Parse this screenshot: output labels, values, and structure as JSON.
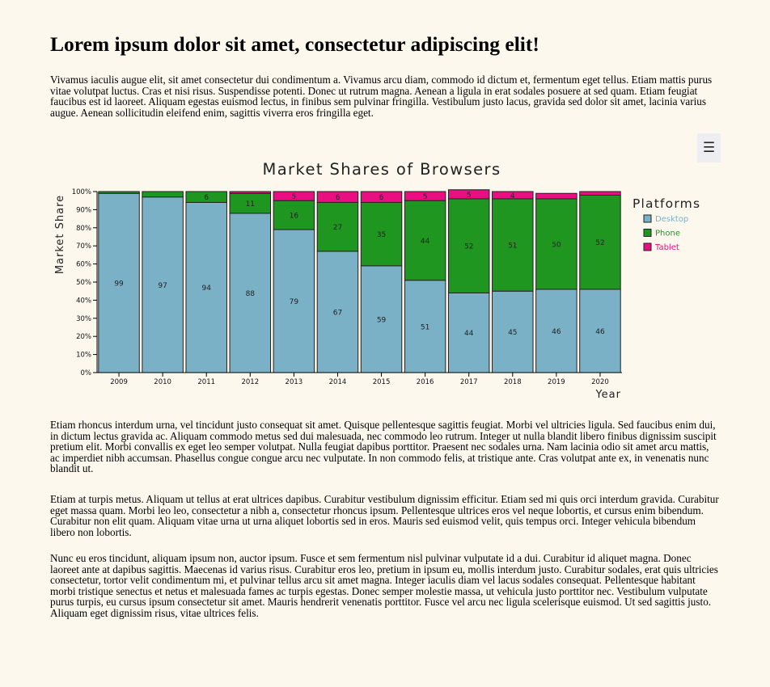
{
  "heading": "Lorem ipsum dolor sit amet, consectetur adipiscing elit!",
  "paragraphs": [
    "Vivamus iaculis augue elit, sit amet consectetur dui condimentum a. Vivamus arcu diam, commodo id dictum et, fermentum eget tellus. Etiam mattis purus vitae volutpat luctus. Cras et nisi risus. Suspendisse potenti. Donec ut rutrum magna. Aenean a ligula in erat sodales posuere at sed quam. Etiam feugiat faucibus est id laoreet. Aliquam egestas euismod lectus, in finibus sem pulvinar fringilla. Vestibulum justo lacus, gravida sed dolor sit amet, lacinia varius augue. Aenean sollicitudin eleifend enim, sagittis viverra eros fringilla eget.",
    "Etiam rhoncus interdum urna, vel tincidunt justo consequat sit amet. Quisque pellentesque sagittis feugiat. Morbi vel ultricies ligula. Sed faucibus enim dui, in dictum lectus gravida ac. Aliquam commodo metus sed dui malesuada, nec commodo leo rutrum. Integer ut nulla blandit libero finibus dignissim suscipit pretium elit. Morbi convallis ex eget leo semper volutpat. Nulla feugiat dapibus porttitor. Praesent nec sodales urna. Nam lacinia odio sit amet arcu mattis, ac imperdiet nibh accumsan. Phasellus congue congue arcu nec vulputate. In non commodo felis, at tristique ante. Cras volutpat ante ex, in venenatis nunc blandit ut.",
    "Etiam at turpis metus. Aliquam ut tellus at erat ultrices dapibus. Curabitur vestibulum dignissim efficitur. Etiam sed mi quis orci interdum gravida. Curabitur eget massa quam. Morbi leo leo, consectetur a nibh a, consectetur rhoncus ipsum. Pellentesque ultrices eros vel neque lobortis, et cursus enim bibendum. Curabitur non elit quam. Aliquam vitae urna ut urna aliquet lobortis sed in eros. Mauris sed euismod velit, quis tempus orci. Integer vehicula bibendum libero non lobortis.",
    "Nunc eu eros tincidunt, aliquam ipsum non, auctor ipsum. Fusce et sem fermentum nisl pulvinar vulputate id a dui. Curabitur id aliquet magna. Donec laoreet ante at dapibus sagittis. Maecenas id varius risus. Curabitur eros leo, pretium in ipsum eu, mollis interdum justo. Curabitur sodales, erat quis ultricies consectetur, tortor velit condimentum mi, et pulvinar tellus arcu sit amet magna. Integer iaculis diam vel lacus sodales consequat. Pellentesque habitant morbi tristique senectus et netus et malesuada fames ac turpis egestas. Donec semper molestie massa, ut vehicula justo porttitor nec. Vestibulum vulputate purus turpis, eu cursus ipsum consectetur sit amet. Mauris hendrerit venenatis porttitor. Fusce vel arcu nec ligula scelerisque euismod. Ut sed sagittis justo. Aliquam eget dignissim risus, vitae ultrices felis."
  ],
  "menu_button": {
    "icon": "hamburger-menu-icon",
    "glyph": "☰"
  },
  "chart_data": {
    "type": "bar",
    "stacked": true,
    "title": "Market Shares of Browsers",
    "xlabel": "Year",
    "ylabel": "Market Share",
    "ylim": [
      0,
      100
    ],
    "y_ticks": [
      "0%",
      "10%",
      "20%",
      "30%",
      "40%",
      "50%",
      "60%",
      "70%",
      "80%",
      "90%",
      "100%"
    ],
    "categories": [
      "2009",
      "2010",
      "2011",
      "2012",
      "2013",
      "2014",
      "2015",
      "2016",
      "2017",
      "2018",
      "2019",
      "2020"
    ],
    "legend_title": "Platforms",
    "legend_position": "right",
    "grid": false,
    "series": [
      {
        "name": "Desktop",
        "color": "#7ab1c6",
        "values": [
          99,
          97,
          94,
          88,
          79,
          67,
          59,
          51,
          44,
          45,
          46,
          46
        ],
        "labels": [
          "99",
          "97",
          "94",
          "88",
          "79",
          "67",
          "59",
          "51",
          "44",
          "45",
          "46",
          "46"
        ]
      },
      {
        "name": "Phone",
        "color": "#1f961f",
        "values": [
          1,
          3,
          6,
          11,
          16,
          27,
          35,
          44,
          52,
          51,
          50,
          52
        ],
        "labels": [
          "",
          "",
          "6",
          "11",
          "16",
          "27",
          "35",
          "44",
          "52",
          "51",
          "50",
          "52"
        ]
      },
      {
        "name": "Tablet",
        "color": "#ea0e83",
        "values": [
          0,
          0,
          0,
          1,
          5,
          6,
          6,
          5,
          5,
          4,
          3,
          2
        ],
        "labels": [
          "",
          "",
          "",
          "",
          "5",
          "6",
          "6",
          "5",
          "5",
          "4",
          "",
          ""
        ]
      }
    ]
  }
}
